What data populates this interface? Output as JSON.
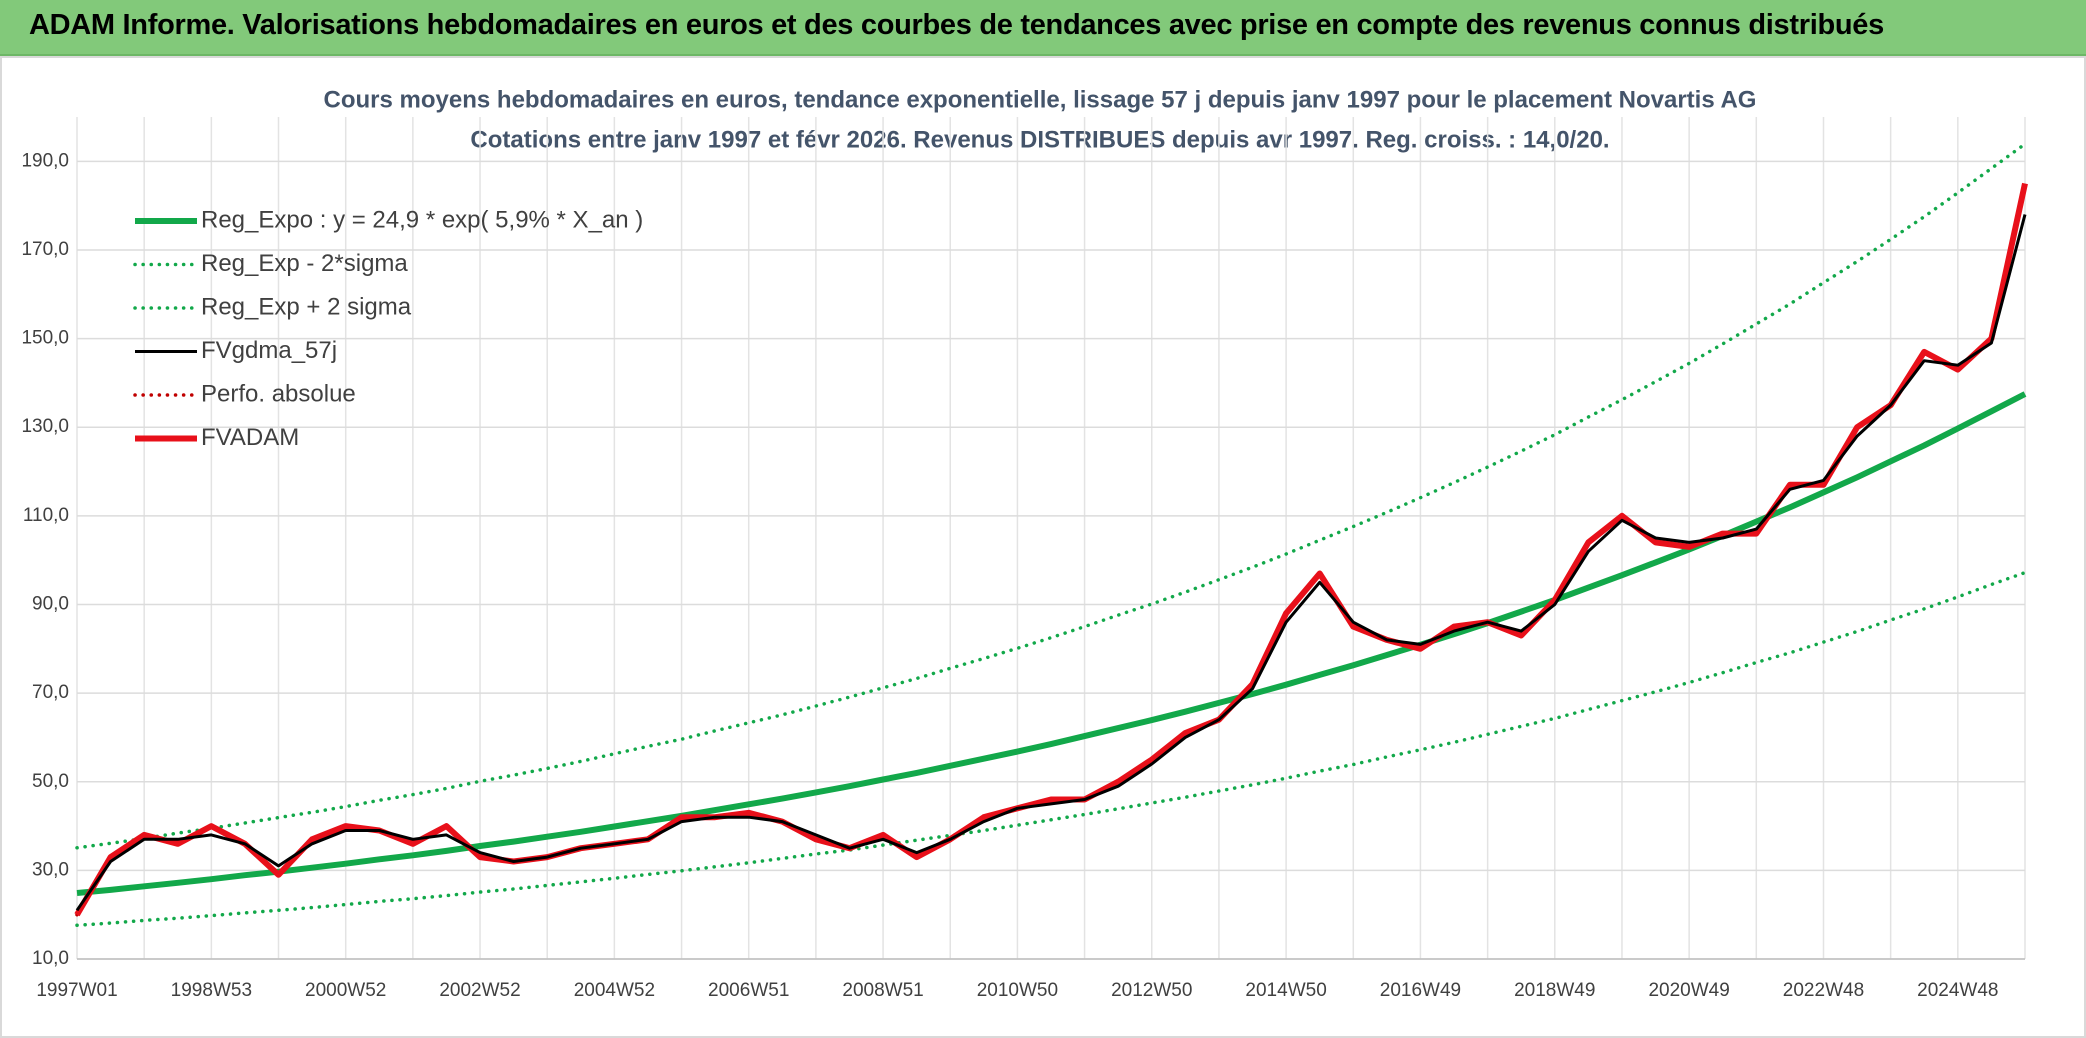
{
  "header": {
    "title": "ADAM Informe. Valorisations hebdomadaires en euros et des courbes de tendances avec prise en compte des revenus connus distribués"
  },
  "chart_data": {
    "type": "line",
    "title": "Cours moyens hebdomadaires en euros, tendance exponentielle, lissage 57 j depuis janv 1997 pour le placement Novartis AG",
    "subtitle": "Cotations entre janv 1997 et févr 2026. Revenus DISTRIBUES depuis avr 1997. Reg. croiss. : 14,0/20.",
    "categories": [
      "1997W01",
      null,
      null,
      null,
      "1998W53",
      null,
      null,
      null,
      "2000W52",
      null,
      null,
      null,
      "2002W52",
      null,
      null,
      null,
      "2004W52",
      null,
      null,
      null,
      "2006W51",
      null,
      null,
      null,
      "2008W51",
      null,
      null,
      null,
      "2010W50",
      null,
      null,
      null,
      "2012W50",
      null,
      null,
      null,
      "2014W50",
      null,
      null,
      null,
      "2016W49",
      null,
      null,
      null,
      "2018W49",
      null,
      null,
      null,
      "2020W49",
      null,
      null,
      null,
      "2022W48",
      null,
      null,
      null,
      "2024W48",
      null,
      null
    ],
    "ylim": [
      10,
      200
    ],
    "yticks": [
      {
        "value": 10,
        "label": "10,0"
      },
      {
        "value": 30,
        "label": "30,0"
      },
      {
        "value": 50,
        "label": "50,0"
      },
      {
        "value": 70,
        "label": "70,0"
      },
      {
        "value": 90,
        "label": "90,0"
      },
      {
        "value": 110,
        "label": "110,0"
      },
      {
        "value": 130,
        "label": "130,0"
      },
      {
        "value": 150,
        "label": "150,0"
      },
      {
        "value": 170,
        "label": "170,0"
      },
      {
        "value": 190,
        "label": "190,0"
      }
    ],
    "grid": true,
    "legend": "upper left",
    "series": [
      {
        "name": "Reg_Expo : y = 24,9 * exp( 5,9% *  X_an )",
        "color": "#12a84a",
        "line_style": "solid",
        "weight": "thick",
        "values": [
          24.9,
          25.6,
          26.4,
          27.2,
          28.0,
          28.9,
          29.7,
          30.6,
          31.5,
          32.5,
          33.4,
          34.4,
          35.5,
          36.5,
          37.6,
          38.7,
          39.9,
          41.1,
          42.3,
          43.6,
          44.9,
          46.2,
          47.6,
          49.0,
          50.5,
          52.0,
          53.6,
          55.2,
          56.8,
          58.5,
          60.3,
          62.1,
          63.9,
          65.8,
          67.8,
          69.8,
          71.9,
          74.1,
          76.3,
          78.6,
          80.9,
          83.3,
          85.8,
          88.4,
          91.0,
          93.8,
          96.6,
          99.5,
          102.4,
          105.5,
          108.7,
          111.9,
          115.3,
          118.7,
          122.3,
          125.9,
          129.7,
          133.6,
          137.5
        ]
      },
      {
        "name": "Reg_Exp - 2*sigma",
        "color": "#12a84a",
        "line_style": "dotted",
        "weight": "normal",
        "values": [
          17.6,
          18.1,
          18.7,
          19.2,
          19.8,
          20.4,
          21.0,
          21.6,
          22.3,
          23.0,
          23.6,
          24.3,
          25.1,
          25.8,
          26.6,
          27.4,
          28.2,
          29.1,
          29.9,
          30.8,
          31.7,
          32.7,
          33.7,
          34.6,
          35.7,
          36.8,
          37.9,
          39.0,
          40.2,
          41.4,
          42.6,
          43.9,
          45.2,
          46.5,
          47.9,
          49.3,
          50.8,
          52.4,
          53.9,
          55.6,
          57.2,
          58.9,
          60.7,
          62.5,
          64.3,
          66.3,
          68.3,
          70.3,
          72.4,
          74.6,
          76.9,
          79.1,
          81.5,
          83.9,
          86.5,
          89.0,
          91.7,
          94.5,
          97.2
        ]
      },
      {
        "name": "Reg_Exp + 2 sigma",
        "color": "#12a84a",
        "line_style": "dotted",
        "weight": "normal",
        "values": [
          35.1,
          36.1,
          37.2,
          38.4,
          39.5,
          40.7,
          41.9,
          43.1,
          44.4,
          45.8,
          47.1,
          48.5,
          50.1,
          51.5,
          53.0,
          54.6,
          56.3,
          58.0,
          59.6,
          61.5,
          63.3,
          65.1,
          67.1,
          69.1,
          71.2,
          73.3,
          75.6,
          77.8,
          80.1,
          82.5,
          85.0,
          87.6,
          90.1,
          92.8,
          95.6,
          98.4,
          101.4,
          104.5,
          107.6,
          110.8,
          114.1,
          117.5,
          121.0,
          124.6,
          128.3,
          132.3,
          136.2,
          140.3,
          144.4,
          148.8,
          153.3,
          157.8,
          162.6,
          167.4,
          172.4,
          177.5,
          182.9,
          188.4,
          193.9
        ]
      },
      {
        "name": "Perfo. absolue",
        "color": "#c00000",
        "line_style": "dotted",
        "weight": "normal",
        "values": [
          20,
          33,
          38,
          36,
          40,
          36,
          29,
          37,
          40,
          39,
          36,
          40,
          33,
          32,
          33,
          35,
          36,
          37,
          42,
          42,
          43,
          41,
          37,
          35,
          38,
          33,
          37,
          42,
          44,
          46,
          46,
          50,
          55,
          61,
          64,
          72,
          88,
          97,
          85,
          82,
          80,
          85,
          86,
          83,
          91,
          104,
          110,
          104,
          103,
          106,
          106,
          117,
          117,
          130,
          135,
          147,
          143,
          150,
          185
        ]
      },
      {
        "name": "FVADAM",
        "color": "#e8101a",
        "line_style": "solid",
        "weight": "thick",
        "values": [
          20,
          33,
          38,
          36,
          40,
          36,
          29,
          37,
          40,
          39,
          36,
          40,
          33,
          32,
          33,
          35,
          36,
          37,
          42,
          42,
          43,
          41,
          37,
          35,
          38,
          33,
          37,
          42,
          44,
          46,
          46,
          50,
          55,
          61,
          64,
          72,
          88,
          97,
          85,
          82,
          80,
          85,
          86,
          83,
          91,
          104,
          110,
          104,
          103,
          106,
          106,
          117,
          117,
          130,
          135,
          147,
          143,
          150,
          185
        ]
      },
      {
        "name": "FVgdma_57j",
        "color": "#000000",
        "line_style": "solid",
        "weight": "normal",
        "values": [
          21,
          32,
          37,
          37,
          38,
          36,
          31,
          36,
          39,
          39,
          37,
          38,
          34,
          32,
          33,
          35,
          36,
          37,
          41,
          42,
          42,
          41,
          38,
          35,
          37,
          34,
          37,
          41,
          44,
          45,
          46,
          49,
          54,
          60,
          64,
          71,
          86,
          95,
          86,
          82,
          81,
          84,
          86,
          84,
          90,
          102,
          109,
          105,
          104,
          105,
          107,
          116,
          118,
          128,
          135,
          145,
          144,
          149,
          178
        ]
      }
    ]
  }
}
